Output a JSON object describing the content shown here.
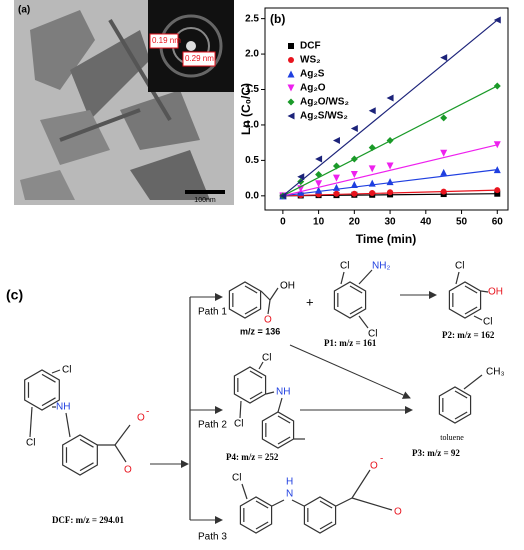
{
  "panel_a": {
    "label": "(a)",
    "inset_labels": [
      "0.19 nm",
      "0.29 nm"
    ],
    "scale_bar": "100nm"
  },
  "chart_data": {
    "type": "scatter",
    "title": "(b)",
    "x_label": "Time (min)",
    "y_label": "Ln (C₀/C)",
    "x": [
      0,
      5,
      10,
      15,
      20,
      25,
      30,
      45,
      60
    ],
    "series": [
      {
        "name": "DCF",
        "color": "#000000",
        "marker": "square",
        "values": [
          0,
          0.005,
          0.01,
          0.01,
          0.015,
          0.015,
          0.02,
          0.025,
          0.03
        ]
      },
      {
        "name": "WS₂",
        "color": "#e8141e",
        "marker": "circle",
        "values": [
          0,
          0.01,
          0.02,
          0.03,
          0.03,
          0.04,
          0.05,
          0.06,
          0.08
        ]
      },
      {
        "name": "Ag₂S",
        "color": "#1f3fe0",
        "marker": "triangle-up",
        "values": [
          0,
          0.05,
          0.08,
          0.12,
          0.16,
          0.18,
          0.2,
          0.33,
          0.37
        ]
      },
      {
        "name": "Ag₂O",
        "color": "#ee20ee",
        "marker": "triangle-down",
        "values": [
          0,
          0.1,
          0.17,
          0.25,
          0.3,
          0.38,
          0.42,
          0.6,
          0.72
        ]
      },
      {
        "name": "Ag₂O/WS₂",
        "color": "#1a9a28",
        "marker": "diamond",
        "values": [
          0,
          0.2,
          0.3,
          0.42,
          0.52,
          0.68,
          0.78,
          1.1,
          1.55
        ]
      },
      {
        "name": "Ag₂S/WS₂",
        "color": "#1c237a",
        "marker": "triangle-left",
        "values": [
          0,
          0.27,
          0.52,
          0.78,
          0.95,
          1.2,
          1.38,
          1.95,
          2.48
        ]
      }
    ],
    "xlim": [
      -5,
      63
    ],
    "ylim": [
      -0.2,
      2.65
    ],
    "xticks": [
      0,
      10,
      20,
      30,
      40,
      50,
      60
    ],
    "yticks": [
      {
        "value": 0,
        "label": "0.0"
      },
      0.5,
      {
        "value": 1,
        "label": "1.0"
      },
      1.5,
      {
        "value": 2,
        "label": "2.0"
      },
      2.5
    ],
    "legend": "upper left"
  },
  "panel_c": {
    "label": "(c)",
    "paths": [
      "Path 1",
      "Path 2",
      "Path 3"
    ],
    "dcf": {
      "atoms": [
        "Cl",
        "NH",
        "Cl",
        "O",
        "-",
        "O"
      ],
      "label": "DCF: m/z = 294.01"
    },
    "acid": {
      "atoms": [
        "OH",
        "O"
      ],
      "label": "m/z = 136"
    },
    "plus": "+",
    "p1": {
      "atoms": [
        "Cl",
        "NH₂",
        "Cl"
      ],
      "label": "P1: m/z = 161"
    },
    "p2": {
      "atoms": [
        "Cl",
        "OH",
        "Cl"
      ],
      "label": "P2: m/z = 162"
    },
    "p3": {
      "atoms": [
        "CH₃"
      ],
      "name": "toluene",
      "label": "P3: m/z = 92"
    },
    "p4": {
      "atoms": [
        "Cl",
        "NH",
        "Cl"
      ],
      "label": "P4: m/z = 252"
    },
    "carbazole": {
      "atoms": [
        "Cl",
        "H",
        "N",
        "O",
        "-",
        "O"
      ]
    }
  }
}
